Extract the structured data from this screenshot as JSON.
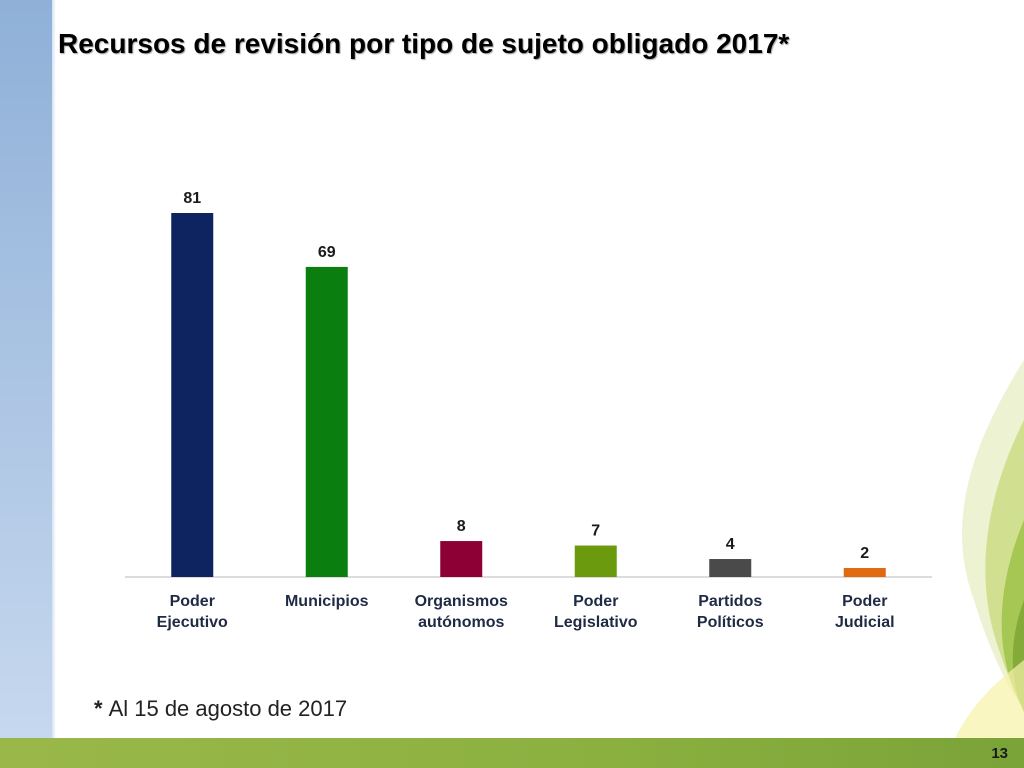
{
  "slide": {
    "title": "Recursos de revisión por tipo de sujeto obligado 2017*",
    "footnote_marker": "*",
    "footnote": "Al 15 de agosto de 2017",
    "page_number": "13"
  },
  "colors": {
    "band": "#9ab6dc",
    "bottom_bar": "#8bb040"
  },
  "chart_data": {
    "type": "bar",
    "title": "",
    "xlabel": "",
    "ylabel": "",
    "grid": false,
    "legend": "none",
    "ylim": [
      0,
      81
    ],
    "categories": [
      [
        "Poder",
        "Ejecutivo"
      ],
      [
        "Municipios"
      ],
      [
        "Organismos",
        "autónomos"
      ],
      [
        "Poder",
        "Legislativo"
      ],
      [
        "Partidos",
        "Políticos"
      ],
      [
        "Poder",
        "Judicial"
      ]
    ],
    "values": [
      81,
      69,
      8,
      7,
      4,
      2
    ],
    "bar_colors": [
      "#0d2460",
      "#0a7f10",
      "#8c0036",
      "#6b9a0f",
      "#4a4a4a",
      "#e06a12"
    ]
  }
}
